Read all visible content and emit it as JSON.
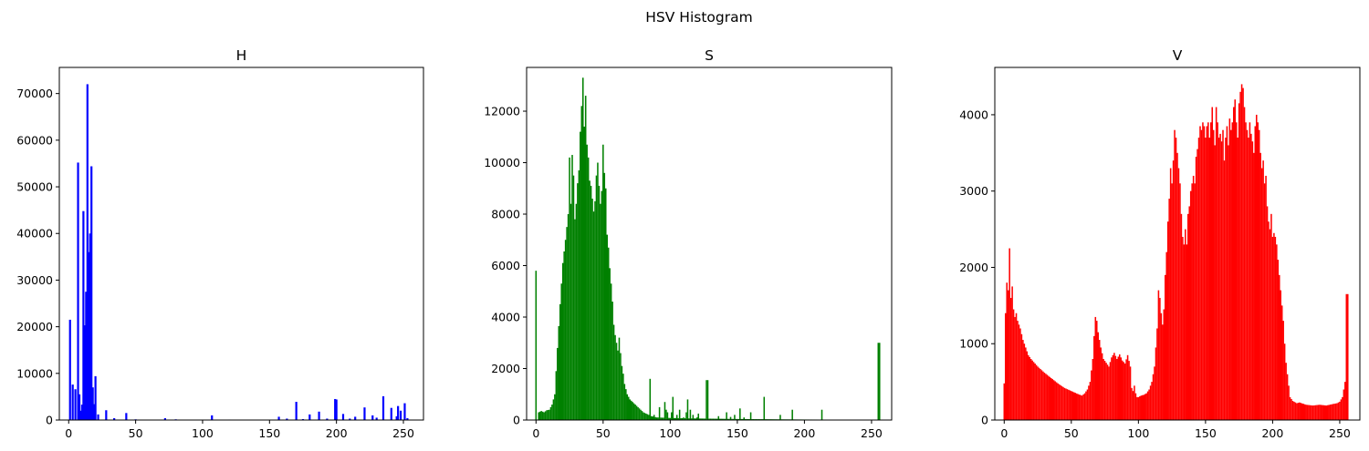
{
  "suptitle": "HSV Histogram",
  "chart_data": [
    {
      "type": "bar",
      "title": "H",
      "color": "#0000ff",
      "xlim": [
        -7,
        265
      ],
      "ylim": [
        0,
        75600
      ],
      "xticks": [
        0,
        50,
        100,
        150,
        200,
        250
      ],
      "yticks": [
        0,
        10000,
        20000,
        30000,
        40000,
        50000,
        60000,
        70000
      ],
      "bins": [
        {
          "x": 1,
          "v": 21500
        },
        {
          "x": 3,
          "v": 7600
        },
        {
          "x": 5,
          "v": 6600
        },
        {
          "x": 7,
          "v": 55200
        },
        {
          "x": 8,
          "v": 5500
        },
        {
          "x": 9,
          "v": 2000
        },
        {
          "x": 10,
          "v": 3300
        },
        {
          "x": 11,
          "v": 44800
        },
        {
          "x": 12,
          "v": 20300
        },
        {
          "x": 13,
          "v": 27500
        },
        {
          "x": 14,
          "v": 72000
        },
        {
          "x": 15,
          "v": 36000
        },
        {
          "x": 16,
          "v": 40000
        },
        {
          "x": 17,
          "v": 54400
        },
        {
          "x": 18,
          "v": 7000
        },
        {
          "x": 19,
          "v": 3400
        },
        {
          "x": 20,
          "v": 9400
        },
        {
          "x": 22,
          "v": 1200
        },
        {
          "x": 28,
          "v": 2100
        },
        {
          "x": 34,
          "v": 400
        },
        {
          "x": 43,
          "v": 1500
        },
        {
          "x": 50,
          "v": 150
        },
        {
          "x": 72,
          "v": 400
        },
        {
          "x": 80,
          "v": 150
        },
        {
          "x": 107,
          "v": 1000
        },
        {
          "x": 120,
          "v": 100
        },
        {
          "x": 157,
          "v": 700
        },
        {
          "x": 163,
          "v": 300
        },
        {
          "x": 170,
          "v": 3900
        },
        {
          "x": 175,
          "v": 200
        },
        {
          "x": 180,
          "v": 1200
        },
        {
          "x": 187,
          "v": 1800
        },
        {
          "x": 193,
          "v": 300
        },
        {
          "x": 199,
          "v": 4500
        },
        {
          "x": 200,
          "v": 4400
        },
        {
          "x": 205,
          "v": 1300
        },
        {
          "x": 210,
          "v": 300
        },
        {
          "x": 214,
          "v": 700
        },
        {
          "x": 221,
          "v": 2700
        },
        {
          "x": 227,
          "v": 1000
        },
        {
          "x": 230,
          "v": 500
        },
        {
          "x": 235,
          "v": 5100
        },
        {
          "x": 241,
          "v": 2600
        },
        {
          "x": 245,
          "v": 800
        },
        {
          "x": 246,
          "v": 3000
        },
        {
          "x": 248,
          "v": 2000
        },
        {
          "x": 251,
          "v": 3600
        },
        {
          "x": 253,
          "v": 400
        }
      ]
    },
    {
      "type": "bar",
      "title": "S",
      "color": "#008000",
      "xlim": [
        -7,
        265
      ],
      "ylim": [
        0,
        13700
      ],
      "xticks": [
        0,
        50,
        100,
        150,
        200,
        250
      ],
      "yticks": [
        0,
        2000,
        4000,
        6000,
        8000,
        10000,
        12000
      ],
      "profile": [
        [
          0,
          5800
        ],
        [
          1,
          0
        ],
        [
          2,
          300
        ],
        [
          4,
          350
        ],
        [
          6,
          300
        ],
        [
          8,
          380
        ],
        [
          10,
          400
        ],
        [
          12,
          600
        ],
        [
          14,
          1000
        ],
        [
          16,
          2800
        ],
        [
          18,
          4500
        ],
        [
          20,
          6100
        ],
        [
          22,
          7000
        ],
        [
          24,
          8000
        ],
        [
          25,
          10200
        ],
        [
          26,
          8400
        ],
        [
          27,
          10300
        ],
        [
          28,
          9500
        ],
        [
          29,
          7800
        ],
        [
          30,
          8400
        ],
        [
          31,
          9200
        ],
        [
          32,
          9700
        ],
        [
          33,
          11200
        ],
        [
          34,
          12200
        ],
        [
          35,
          13300
        ],
        [
          36,
          11400
        ],
        [
          37,
          12600
        ],
        [
          38,
          10700
        ],
        [
          39,
          10200
        ],
        [
          40,
          9300
        ],
        [
          41,
          9100
        ],
        [
          42,
          8600
        ],
        [
          43,
          8100
        ],
        [
          44,
          8500
        ],
        [
          45,
          9500
        ],
        [
          46,
          10000
        ],
        [
          47,
          9100
        ],
        [
          48,
          8400
        ],
        [
          49,
          8900
        ],
        [
          50,
          10700
        ],
        [
          51,
          9600
        ],
        [
          52,
          9000
        ],
        [
          53,
          7200
        ],
        [
          54,
          6700
        ],
        [
          55,
          5900
        ],
        [
          56,
          5300
        ],
        [
          57,
          4600
        ],
        [
          58,
          3700
        ],
        [
          59,
          3300
        ],
        [
          60,
          3000
        ],
        [
          61,
          2700
        ],
        [
          62,
          3200
        ],
        [
          63,
          2600
        ],
        [
          64,
          2100
        ],
        [
          65,
          1800
        ],
        [
          66,
          1400
        ],
        [
          68,
          1000
        ],
        [
          70,
          800
        ],
        [
          72,
          700
        ],
        [
          74,
          600
        ],
        [
          76,
          500
        ],
        [
          78,
          400
        ],
        [
          80,
          300
        ],
        [
          82,
          250
        ],
        [
          84,
          200
        ],
        [
          86,
          150
        ],
        [
          90,
          100
        ],
        [
          100,
          80
        ],
        [
          120,
          60
        ],
        [
          150,
          40
        ],
        [
          200,
          20
        ],
        [
          255,
          10
        ]
      ],
      "spikes": [
        {
          "x": 85,
          "v": 1600
        },
        {
          "x": 88,
          "v": 200
        },
        {
          "x": 92,
          "v": 500
        },
        {
          "x": 96,
          "v": 700
        },
        {
          "x": 97,
          "v": 400
        },
        {
          "x": 98,
          "v": 300
        },
        {
          "x": 101,
          "v": 300
        },
        {
          "x": 102,
          "v": 900
        },
        {
          "x": 105,
          "v": 200
        },
        {
          "x": 107,
          "v": 400
        },
        {
          "x": 110,
          "v": 100
        },
        {
          "x": 112,
          "v": 300
        },
        {
          "x": 113,
          "v": 800
        },
        {
          "x": 115,
          "v": 400
        },
        {
          "x": 117,
          "v": 200
        },
        {
          "x": 120,
          "v": 100
        },
        {
          "x": 121,
          "v": 250
        },
        {
          "x": 127,
          "v": 1550
        },
        {
          "x": 128,
          "v": 1550
        },
        {
          "x": 136,
          "v": 150
        },
        {
          "x": 142,
          "v": 300
        },
        {
          "x": 145,
          "v": 120
        },
        {
          "x": 148,
          "v": 200
        },
        {
          "x": 152,
          "v": 450
        },
        {
          "x": 155,
          "v": 100
        },
        {
          "x": 160,
          "v": 300
        },
        {
          "x": 170,
          "v": 900
        },
        {
          "x": 182,
          "v": 200
        },
        {
          "x": 191,
          "v": 400
        },
        {
          "x": 213,
          "v": 400
        },
        {
          "x": 255,
          "v": 3000
        },
        {
          "x": 256,
          "v": 3000
        }
      ]
    },
    {
      "type": "bar",
      "title": "V",
      "color": "#ff0000",
      "xlim": [
        -7,
        265
      ],
      "ylim": [
        0,
        4620
      ],
      "xticks": [
        0,
        50,
        100,
        150,
        200,
        250
      ],
      "yticks": [
        0,
        1000,
        2000,
        3000,
        4000
      ],
      "profile": [
        [
          0,
          480
        ],
        [
          1,
          1400
        ],
        [
          2,
          1800
        ],
        [
          3,
          1700
        ],
        [
          4,
          2250
        ],
        [
          5,
          1600
        ],
        [
          6,
          1750
        ],
        [
          7,
          1450
        ],
        [
          8,
          1350
        ],
        [
          9,
          1400
        ],
        [
          10,
          1300
        ],
        [
          12,
          1200
        ],
        [
          14,
          1050
        ],
        [
          16,
          950
        ],
        [
          18,
          850
        ],
        [
          20,
          800
        ],
        [
          25,
          700
        ],
        [
          30,
          620
        ],
        [
          35,
          550
        ],
        [
          40,
          480
        ],
        [
          45,
          420
        ],
        [
          50,
          380
        ],
        [
          55,
          340
        ],
        [
          58,
          320
        ],
        [
          60,
          350
        ],
        [
          62,
          400
        ],
        [
          64,
          500
        ],
        [
          66,
          800
        ],
        [
          67,
          1100
        ],
        [
          68,
          1350
        ],
        [
          69,
          1300
        ],
        [
          70,
          1150
        ],
        [
          72,
          950
        ],
        [
          74,
          800
        ],
        [
          76,
          750
        ],
        [
          78,
          700
        ],
        [
          80,
          820
        ],
        [
          82,
          880
        ],
        [
          84,
          800
        ],
        [
          86,
          860
        ],
        [
          88,
          780
        ],
        [
          90,
          740
        ],
        [
          92,
          850
        ],
        [
          94,
          700
        ],
        [
          95,
          420
        ],
        [
          96,
          380
        ],
        [
          97,
          450
        ],
        [
          98,
          350
        ],
        [
          99,
          300
        ],
        [
          100,
          300
        ],
        [
          102,
          320
        ],
        [
          104,
          330
        ],
        [
          106,
          350
        ],
        [
          108,
          400
        ],
        [
          110,
          500
        ],
        [
          112,
          700
        ],
        [
          113,
          950
        ],
        [
          114,
          1200
        ],
        [
          115,
          1700
        ],
        [
          116,
          1600
        ],
        [
          117,
          1400
        ],
        [
          118,
          1250
        ],
        [
          119,
          1450
        ],
        [
          120,
          1900
        ],
        [
          121,
          2200
        ],
        [
          122,
          2600
        ],
        [
          123,
          2900
        ],
        [
          124,
          3300
        ],
        [
          125,
          3100
        ],
        [
          126,
          3400
        ],
        [
          127,
          3800
        ],
        [
          128,
          3700
        ],
        [
          129,
          3500
        ],
        [
          130,
          3300
        ],
        [
          131,
          3100
        ],
        [
          132,
          2700
        ],
        [
          133,
          2400
        ],
        [
          134,
          2300
        ],
        [
          135,
          2500
        ],
        [
          136,
          2300
        ],
        [
          137,
          2700
        ],
        [
          138,
          2800
        ],
        [
          139,
          3000
        ],
        [
          140,
          3100
        ],
        [
          141,
          3200
        ],
        [
          142,
          3100
        ],
        [
          143,
          3450
        ],
        [
          144,
          3550
        ],
        [
          145,
          3700
        ],
        [
          146,
          3850
        ],
        [
          147,
          3800
        ],
        [
          148,
          3900
        ],
        [
          149,
          3850
        ],
        [
          150,
          3700
        ],
        [
          151,
          3850
        ],
        [
          152,
          3900
        ],
        [
          153,
          3700
        ],
        [
          154,
          3900
        ],
        [
          155,
          4100
        ],
        [
          156,
          3800
        ],
        [
          157,
          3600
        ],
        [
          158,
          4100
        ],
        [
          159,
          3900
        ],
        [
          160,
          3700
        ],
        [
          161,
          3750
        ],
        [
          162,
          3650
        ],
        [
          163,
          3800
        ],
        [
          164,
          3400
        ],
        [
          165,
          3700
        ],
        [
          166,
          3850
        ],
        [
          167,
          3600
        ],
        [
          168,
          3950
        ],
        [
          169,
          3800
        ],
        [
          170,
          3900
        ],
        [
          171,
          4100
        ],
        [
          172,
          4200
        ],
        [
          173,
          3900
        ],
        [
          174,
          3700
        ],
        [
          175,
          4150
        ],
        [
          176,
          4300
        ],
        [
          177,
          4400
        ],
        [
          178,
          4350
        ],
        [
          179,
          4100
        ],
        [
          180,
          3900
        ],
        [
          181,
          3800
        ],
        [
          182,
          3700
        ],
        [
          183,
          3900
        ],
        [
          184,
          3750
        ],
        [
          185,
          3650
        ],
        [
          186,
          3500
        ],
        [
          187,
          3850
        ],
        [
          188,
          4000
        ],
        [
          189,
          3900
        ],
        [
          190,
          3800
        ],
        [
          191,
          3500
        ],
        [
          192,
          3300
        ],
        [
          193,
          3400
        ],
        [
          194,
          3100
        ],
        [
          195,
          3200
        ],
        [
          196,
          2800
        ],
        [
          197,
          2600
        ],
        [
          198,
          2500
        ],
        [
          199,
          2700
        ],
        [
          200,
          2400
        ],
        [
          201,
          2450
        ],
        [
          202,
          2400
        ],
        [
          203,
          2300
        ],
        [
          204,
          2100
        ],
        [
          205,
          1900
        ],
        [
          206,
          1700
        ],
        [
          207,
          1500
        ],
        [
          208,
          1300
        ],
        [
          209,
          1000
        ],
        [
          210,
          750
        ],
        [
          211,
          600
        ],
        [
          212,
          450
        ],
        [
          213,
          300
        ],
        [
          215,
          250
        ],
        [
          218,
          220
        ],
        [
          220,
          230
        ],
        [
          225,
          200
        ],
        [
          230,
          190
        ],
        [
          235,
          200
        ],
        [
          240,
          190
        ],
        [
          245,
          210
        ],
        [
          248,
          220
        ],
        [
          250,
          240
        ],
        [
          252,
          300
        ],
        [
          253,
          400
        ],
        [
          254,
          500
        ],
        [
          255,
          1650
        ]
      ]
    }
  ]
}
